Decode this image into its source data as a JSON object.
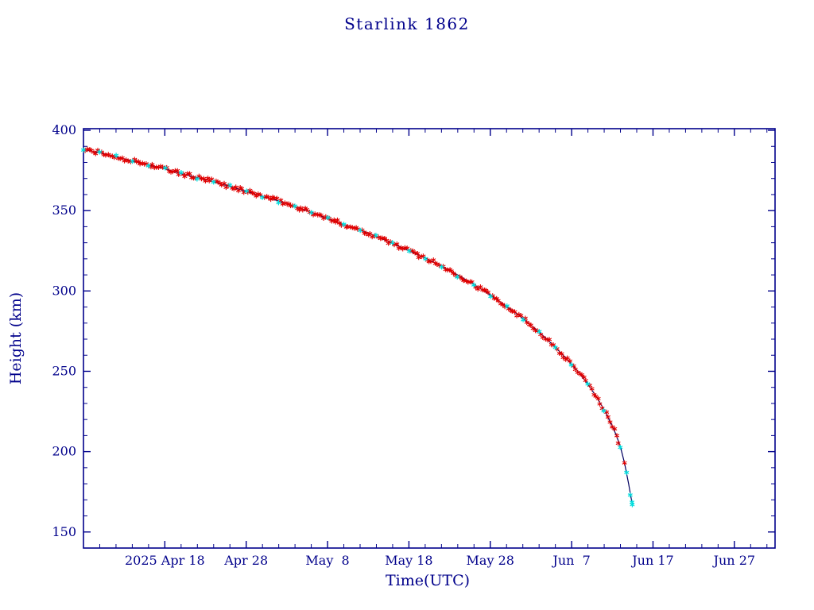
{
  "chart_data": {
    "type": "line+scatter",
    "title": "Starlink 1862",
    "xlabel": "Time(UTC)",
    "ylabel": "Height (km)",
    "legend": "none",
    "grid": false,
    "x_axis": {
      "unit": "days from 2025 Apr 8",
      "lim": [
        0,
        85
      ],
      "minor_tick_days": 2,
      "major_ticks": [
        {
          "day": 10,
          "label": "2025 Apr 18"
        },
        {
          "day": 20,
          "label": "Apr 28"
        },
        {
          "day": 30,
          "label": "May  8"
        },
        {
          "day": 40,
          "label": "May 18"
        },
        {
          "day": 50,
          "label": "May 28"
        },
        {
          "day": 60,
          "label": "Jun  7"
        },
        {
          "day": 70,
          "label": "Jun 17"
        },
        {
          "day": 80,
          "label": "Jun 27"
        }
      ]
    },
    "y_axis": {
      "unit": "km",
      "lim": [
        140,
        401
      ],
      "minor_tick_km": 10,
      "major_ticks": [
        150,
        200,
        250,
        300,
        350,
        400
      ]
    },
    "series": [
      {
        "name": "decay-height-km",
        "points": [
          [
            0,
            388
          ],
          [
            2,
            386
          ],
          [
            4,
            383.5
          ],
          [
            6,
            381
          ],
          [
            8,
            378.5
          ],
          [
            10,
            376
          ],
          [
            12,
            373
          ],
          [
            14,
            370.5
          ],
          [
            16,
            368
          ],
          [
            18,
            365
          ],
          [
            20,
            362
          ],
          [
            22,
            359
          ],
          [
            24,
            356
          ],
          [
            26,
            352.5
          ],
          [
            28,
            349
          ],
          [
            30,
            345
          ],
          [
            32,
            341.5
          ],
          [
            34,
            338
          ],
          [
            36,
            334
          ],
          [
            38,
            329.5
          ],
          [
            40,
            325
          ],
          [
            42,
            320.5
          ],
          [
            44,
            315.5
          ],
          [
            46,
            310
          ],
          [
            48,
            304
          ],
          [
            50,
            297.5
          ],
          [
            52,
            290.5
          ],
          [
            54,
            283
          ],
          [
            56,
            274.5
          ],
          [
            58,
            265
          ],
          [
            60,
            254.5
          ],
          [
            61,
            248.5
          ],
          [
            62,
            242
          ],
          [
            63,
            234.5
          ],
          [
            64,
            226
          ],
          [
            65,
            216
          ],
          [
            65.5,
            210
          ],
          [
            66,
            203
          ],
          [
            66.5,
            193
          ],
          [
            67,
            180
          ],
          [
            67.3,
            171.5
          ],
          [
            67.45,
            167.5
          ]
        ]
      }
    ],
    "markers": {
      "start_day": 0,
      "end_day": 66.2,
      "step_days": 0.25,
      "jitter_km": 1.3,
      "predicted_every": 8,
      "extra": [
        {
          "day": 66.5,
          "height": 193,
          "type": "observed"
        },
        {
          "day": 66.75,
          "height": 187,
          "type": "predicted"
        },
        {
          "day": 67.2,
          "height": 173,
          "type": "predicted"
        },
        {
          "day": 67.42,
          "height": 168.5,
          "type": "predicted"
        },
        {
          "day": 67.45,
          "height": 167,
          "type": "predicted"
        }
      ]
    },
    "colors": {
      "frame": "#00008B",
      "text": "#00008B",
      "line": "#000060",
      "observed": "#e00000",
      "predicted": "#00dddd",
      "background": "#ffffff"
    }
  }
}
